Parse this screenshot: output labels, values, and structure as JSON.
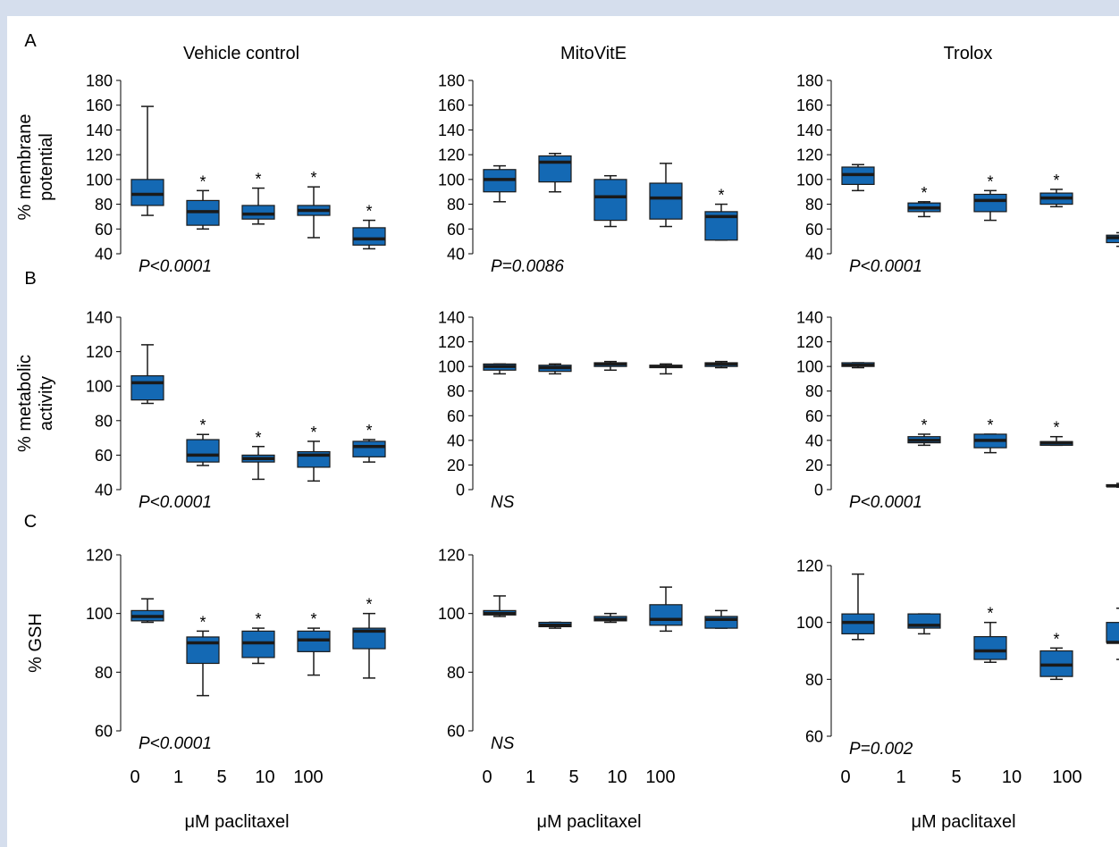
{
  "page": {
    "background": "#d5deed",
    "panel_background": "#ffffff"
  },
  "styles": {
    "box_fill": "#1469b4",
    "box_stroke": "#1a1a1a",
    "median_color": "#1a1a1a",
    "text_color": "#000000"
  },
  "columns": [
    "Vehicle control",
    "MitoVitE",
    "Trolox"
  ],
  "rows": [
    {
      "label": "A",
      "ylabel": [
        "% membrane",
        "potential"
      ]
    },
    {
      "label": "B",
      "ylabel": [
        "% metabolic",
        "activity"
      ]
    },
    {
      "label": "C",
      "ylabel": [
        "% GSH"
      ]
    }
  ],
  "xaxis": {
    "ticks": [
      "0",
      "1",
      "5",
      "10",
      "100"
    ],
    "label": "μM paclitaxel"
  },
  "chart_data": [
    {
      "type": "box",
      "row": "A",
      "title": "Vehicle control",
      "ylabel": "% membrane potential",
      "ylim": [
        40,
        180
      ],
      "yticks": [
        40,
        60,
        80,
        100,
        120,
        140,
        160,
        180
      ],
      "categories": [
        "0",
        "1",
        "5",
        "10",
        "100"
      ],
      "boxes": [
        {
          "min": 71,
          "q1": 79,
          "median": 88,
          "q3": 100,
          "max": 159,
          "sig": false
        },
        {
          "min": 60,
          "q1": 63,
          "median": 74,
          "q3": 83,
          "max": 91,
          "sig": true
        },
        {
          "min": 64,
          "q1": 68,
          "median": 72,
          "q3": 79,
          "max": 93,
          "sig": true
        },
        {
          "min": 53,
          "q1": 71,
          "median": 75,
          "q3": 79,
          "max": 94,
          "sig": true
        },
        {
          "min": 44,
          "q1": 47,
          "median": 52,
          "q3": 61,
          "max": 67,
          "sig": true
        }
      ],
      "pvalue": "P<0.0001"
    },
    {
      "type": "box",
      "row": "A",
      "title": "MitoVitE",
      "ylabel": "",
      "ylim": [
        40,
        180
      ],
      "yticks": [
        40,
        60,
        80,
        100,
        120,
        140,
        160,
        180
      ],
      "categories": [
        "0",
        "1",
        "5",
        "10",
        "100"
      ],
      "boxes": [
        {
          "min": 82,
          "q1": 90,
          "median": 100,
          "q3": 108,
          "max": 111,
          "sig": false
        },
        {
          "min": 90,
          "q1": 98,
          "median": 114,
          "q3": 119,
          "max": 121,
          "sig": false
        },
        {
          "min": 62,
          "q1": 67,
          "median": 86,
          "q3": 100,
          "max": 103,
          "sig": false
        },
        {
          "min": 62,
          "q1": 68,
          "median": 85,
          "q3": 97,
          "max": 113,
          "sig": false
        },
        {
          "min": 51,
          "q1": 51,
          "median": 70,
          "q3": 74,
          "max": 80,
          "sig": true
        }
      ],
      "pvalue": "P=0.0086"
    },
    {
      "type": "box",
      "row": "A",
      "title": "Trolox",
      "ylabel": "",
      "ylim": [
        40,
        180
      ],
      "yticks": [
        40,
        60,
        80,
        100,
        120,
        140,
        160,
        180
      ],
      "categories": [
        "0",
        "1",
        "5",
        "10",
        "100"
      ],
      "boxes": [
        {
          "min": 91,
          "q1": 96,
          "median": 104,
          "q3": 110,
          "max": 112,
          "sig": false
        },
        {
          "min": 70,
          "q1": 74,
          "median": 77,
          "q3": 81,
          "max": 82,
          "sig": true
        },
        {
          "min": 67,
          "q1": 74,
          "median": 83,
          "q3": 88,
          "max": 91,
          "sig": true
        },
        {
          "min": 78,
          "q1": 80,
          "median": 85,
          "q3": 89,
          "max": 92,
          "sig": true
        },
        {
          "min": 46,
          "q1": 49,
          "median": 53,
          "q3": 55,
          "max": 57,
          "sig": true
        }
      ],
      "pvalue": "P<0.0001"
    },
    {
      "type": "box",
      "row": "B",
      "title": "Vehicle control",
      "ylabel": "% metabolic activity",
      "ylim": [
        40,
        140
      ],
      "yticks": [
        40,
        60,
        80,
        100,
        120,
        140
      ],
      "categories": [
        "0",
        "1",
        "5",
        "10",
        "100"
      ],
      "boxes": [
        {
          "min": 90,
          "q1": 92,
          "median": 102,
          "q3": 106,
          "max": 124,
          "sig": false
        },
        {
          "min": 54,
          "q1": 56,
          "median": 60,
          "q3": 69,
          "max": 72,
          "sig": true
        },
        {
          "min": 46,
          "q1": 56,
          "median": 58,
          "q3": 60,
          "max": 65,
          "sig": true
        },
        {
          "min": 45,
          "q1": 53,
          "median": 60,
          "q3": 62,
          "max": 68,
          "sig": true
        },
        {
          "min": 56,
          "q1": 59,
          "median": 65,
          "q3": 68,
          "max": 69,
          "sig": true
        }
      ],
      "pvalue": "P<0.0001"
    },
    {
      "type": "box",
      "row": "B",
      "title": "MitoVitE",
      "ylabel": "",
      "ylim": [
        0,
        140
      ],
      "yticks": [
        0,
        20,
        40,
        60,
        80,
        100,
        120,
        140
      ],
      "categories": [
        "0",
        "1",
        "5",
        "10",
        "100"
      ],
      "boxes": [
        {
          "min": 94,
          "q1": 97,
          "median": 100,
          "q3": 102,
          "max": 102,
          "sig": false
        },
        {
          "min": 94,
          "q1": 96,
          "median": 99,
          "q3": 101,
          "max": 102,
          "sig": false
        },
        {
          "min": 97,
          "q1": 100,
          "median": 102,
          "q3": 103,
          "max": 104,
          "sig": false
        },
        {
          "min": 94,
          "q1": 99,
          "median": 100,
          "q3": 101,
          "max": 102,
          "sig": false
        },
        {
          "min": 99,
          "q1": 100,
          "median": 102,
          "q3": 103,
          "max": 104,
          "sig": false
        }
      ],
      "pvalue": "NS"
    },
    {
      "type": "box",
      "row": "B",
      "title": "Trolox",
      "ylabel": "",
      "ylim": [
        0,
        140
      ],
      "yticks": [
        0,
        20,
        40,
        60,
        80,
        100,
        120,
        140
      ],
      "categories": [
        "0",
        "1",
        "5",
        "10",
        "100"
      ],
      "boxes": [
        {
          "min": 99,
          "q1": 100,
          "median": 101,
          "q3": 103,
          "max": 103,
          "sig": false
        },
        {
          "min": 36,
          "q1": 38,
          "median": 40,
          "q3": 43,
          "max": 45,
          "sig": true
        },
        {
          "min": 30,
          "q1": 34,
          "median": 40,
          "q3": 45,
          "max": 45,
          "sig": true
        },
        {
          "min": 36,
          "q1": 36,
          "median": 38,
          "q3": 39,
          "max": 43,
          "sig": true
        },
        {
          "min": 2,
          "q1": 2.5,
          "median": 3,
          "q3": 4,
          "max": 5,
          "sig": true
        }
      ],
      "pvalue": "P<0.0001"
    },
    {
      "type": "box",
      "row": "C",
      "title": "Vehicle control",
      "ylabel": "% GSH",
      "ylim": [
        60,
        120
      ],
      "yticks": [
        60,
        80,
        100,
        120
      ],
      "categories": [
        "0",
        "1",
        "5",
        "10",
        "100"
      ],
      "boxes": [
        {
          "min": 97,
          "q1": 97.5,
          "median": 99,
          "q3": 101,
          "max": 105,
          "sig": false
        },
        {
          "min": 72,
          "q1": 83,
          "median": 90,
          "q3": 92,
          "max": 94,
          "sig": true
        },
        {
          "min": 83,
          "q1": 85,
          "median": 90,
          "q3": 94,
          "max": 95,
          "sig": true
        },
        {
          "min": 79,
          "q1": 87,
          "median": 91,
          "q3": 94,
          "max": 95,
          "sig": true
        },
        {
          "min": 78,
          "q1": 88,
          "median": 94,
          "q3": 95,
          "max": 100,
          "sig": true
        }
      ],
      "pvalue": "P<0.0001"
    },
    {
      "type": "box",
      "row": "C",
      "title": "MitoVitE",
      "ylabel": "",
      "ylim": [
        60,
        120
      ],
      "yticks": [
        60,
        80,
        100,
        120
      ],
      "categories": [
        "0",
        "1",
        "5",
        "10",
        "100"
      ],
      "boxes": [
        {
          "min": 99,
          "q1": 99.5,
          "median": 100,
          "q3": 101,
          "max": 106,
          "sig": false
        },
        {
          "min": 95,
          "q1": 95.5,
          "median": 96,
          "q3": 97,
          "max": 97,
          "sig": false
        },
        {
          "min": 97,
          "q1": 97.5,
          "median": 98,
          "q3": 99,
          "max": 100,
          "sig": false
        },
        {
          "min": 94,
          "q1": 96,
          "median": 98,
          "q3": 103,
          "max": 109,
          "sig": false
        },
        {
          "min": 95,
          "q1": 95,
          "median": 98,
          "q3": 99,
          "max": 101,
          "sig": false
        }
      ],
      "pvalue": "NS"
    },
    {
      "type": "box",
      "row": "C",
      "title": "Trolox",
      "ylabel": "",
      "ylim": [
        60,
        120
      ],
      "yticks": [
        60,
        80,
        100,
        120
      ],
      "categories": [
        "0",
        "1",
        "5",
        "10",
        "100"
      ],
      "boxes": [
        {
          "min": 94,
          "q1": 96,
          "median": 100,
          "q3": 103,
          "max": 117,
          "sig": false
        },
        {
          "min": 96,
          "q1": 98,
          "median": 99,
          "q3": 103,
          "max": 103,
          "sig": false
        },
        {
          "min": 86,
          "q1": 87,
          "median": 90,
          "q3": 95,
          "max": 100,
          "sig": true
        },
        {
          "min": 80,
          "q1": 81,
          "median": 85,
          "q3": 90,
          "max": 91,
          "sig": true
        },
        {
          "min": 87,
          "q1": 93,
          "median": 93,
          "q3": 100,
          "max": 105,
          "sig": false
        }
      ],
      "pvalue": "P=0.002"
    }
  ]
}
